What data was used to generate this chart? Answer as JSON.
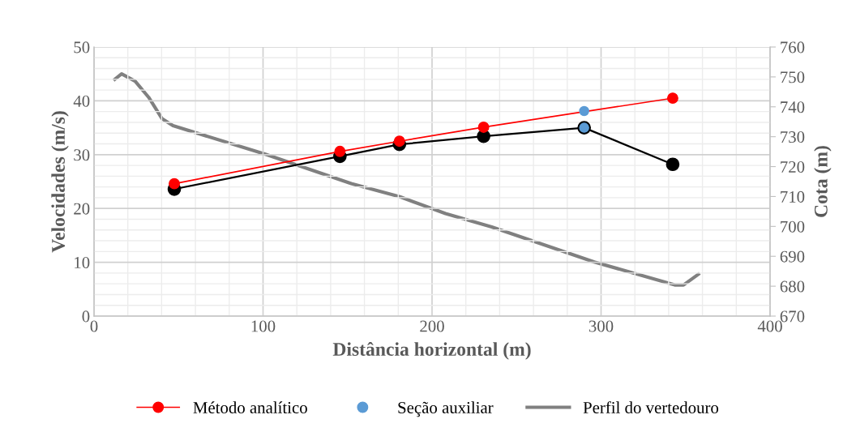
{
  "chart_data": {
    "type": "line",
    "xlabel": "Distância horizontal (m)",
    "ylabel": "Velocidades (m/s)",
    "y2label": "Cota (m)",
    "xlim": [
      0,
      400
    ],
    "xticks": [
      0,
      100,
      200,
      300,
      400
    ],
    "ylim": [
      0,
      50
    ],
    "yticks": [
      0,
      10,
      20,
      30,
      40,
      50
    ],
    "y2lim": [
      670,
      760
    ],
    "y2ticks": [
      670,
      680,
      690,
      700,
      710,
      720,
      730,
      740,
      750,
      760
    ],
    "grid": true,
    "legend": "bottom",
    "marker": "circle",
    "series": [
      {
        "color": "#000000",
        "x": [
          47.5,
          145.5,
          180.7,
          230.5,
          290,
          342.4
        ],
        "values": [
          23.6,
          29.7,
          31.9,
          33.4,
          35.0,
          28.2
        ]
      },
      {
        "name": "Método analítico",
        "color": "#ff0000",
        "x": [
          47.5,
          145.5,
          180.7,
          230.5,
          342.4
        ],
        "values": [
          24.6,
          30.6,
          32.5,
          35.1,
          40.5
        ]
      },
      {
        "name": "Seção auxiliar",
        "type": "scatter",
        "color": "#5b9bd5",
        "x": [
          290,
          290
        ],
        "values": [
          38.1,
          35.0
        ]
      },
      {
        "name": "Perfil do vertedouro",
        "color": "#808080",
        "axis": "y2",
        "marker": "none",
        "x": [
          12.3,
          16.3,
          24.3,
          32.3,
          40.3,
          46.7,
          101,
          152.2,
          181,
          208,
          235.3,
          296,
          344,
          348.8,
          357.6
        ],
        "values": [
          749.2,
          751.0,
          748.6,
          743.2,
          736.0,
          733.7,
          724.2,
          714.3,
          709.9,
          704.3,
          699.8,
          688.1,
          680.4,
          680.4,
          684.0
        ]
      }
    ]
  }
}
